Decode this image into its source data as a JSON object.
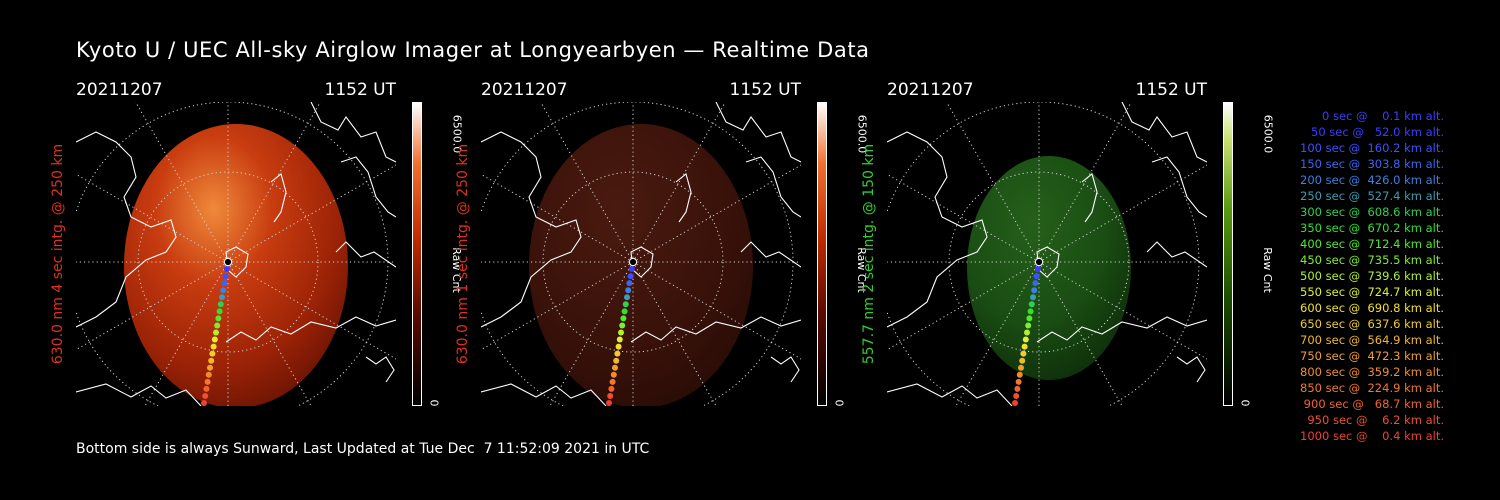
{
  "title": "Kyoto U / UEC All-sky Airglow Imager at Longyearbyen — Realtime Data",
  "footer": "Bottom side is always Sunward, Last Updated at Tue Dec  7 11:52:09 2021 in UTC",
  "panels": [
    {
      "date": "20211207",
      "time": "1152 UT",
      "ylabel": "630.0 nm 4 sec intg. @ 250 km",
      "label_color": "#e0301e",
      "cbar_max": "6500.0",
      "cbar_min": "0",
      "cbar_unit": "Raw Cnt",
      "scheme": "red",
      "intensity": 0.85
    },
    {
      "date": "20211207",
      "time": "1152 UT",
      "ylabel": "630.0 nm 1 sec intg. @ 250 km",
      "label_color": "#e0301e",
      "cbar_max": "6500.0",
      "cbar_min": "0",
      "cbar_unit": "Raw Cnt",
      "scheme": "red",
      "intensity": 0.28
    },
    {
      "date": "20211207",
      "time": "1152 UT",
      "ylabel": "557.7 nm 2 sec intg. @ 150 km",
      "label_color": "#2fcf2f",
      "cbar_max": "6500.0",
      "cbar_min": "0",
      "cbar_unit": "Raw Cnt",
      "scheme": "green",
      "intensity": 0.3
    }
  ],
  "trajectory": [
    {
      "label": "   0 sec @    0.1 km alt.",
      "color": "#3c3cff"
    },
    {
      "label": "  50 sec @   52.0 km alt.",
      "color": "#3c3cff"
    },
    {
      "label": " 100 sec @  160.2 km alt.",
      "color": "#3c50ff"
    },
    {
      "label": " 150 sec @  303.8 km alt.",
      "color": "#3c64f0"
    },
    {
      "label": " 200 sec @  426.0 km alt.",
      "color": "#3c80e0"
    },
    {
      "label": " 250 sec @  527.4 km alt.",
      "color": "#3c9cb4"
    },
    {
      "label": " 300 sec @  608.6 km alt.",
      "color": "#30d050"
    },
    {
      "label": " 350 sec @  670.2 km alt.",
      "color": "#30e030"
    },
    {
      "label": " 400 sec @  712.4 km alt.",
      "color": "#50e830"
    },
    {
      "label": " 450 sec @  735.5 km alt.",
      "color": "#80ec30"
    },
    {
      "label": " 500 sec @  739.6 km alt.",
      "color": "#b4f030"
    },
    {
      "label": " 550 sec @  724.7 km alt.",
      "color": "#e0f030"
    },
    {
      "label": " 600 sec @  690.8 km alt.",
      "color": "#f0e030"
    },
    {
      "label": " 650 sec @  637.6 km alt.",
      "color": "#f0cc30"
    },
    {
      "label": " 700 sec @  564.9 km alt.",
      "color": "#f0b830"
    },
    {
      "label": " 750 sec @  472.3 km alt.",
      "color": "#f0a030"
    },
    {
      "label": " 800 sec @  359.2 km alt.",
      "color": "#f08c30"
    },
    {
      "label": " 850 sec @  224.9 km alt.",
      "color": "#f07830"
    },
    {
      "label": " 900 sec @   68.7 km alt.",
      "color": "#f06430"
    },
    {
      "label": " 950 sec @    6.2 km alt.",
      "color": "#f05030"
    },
    {
      "label": "1000 sec @    0.4 km alt.",
      "color": "#f04030"
    }
  ]
}
